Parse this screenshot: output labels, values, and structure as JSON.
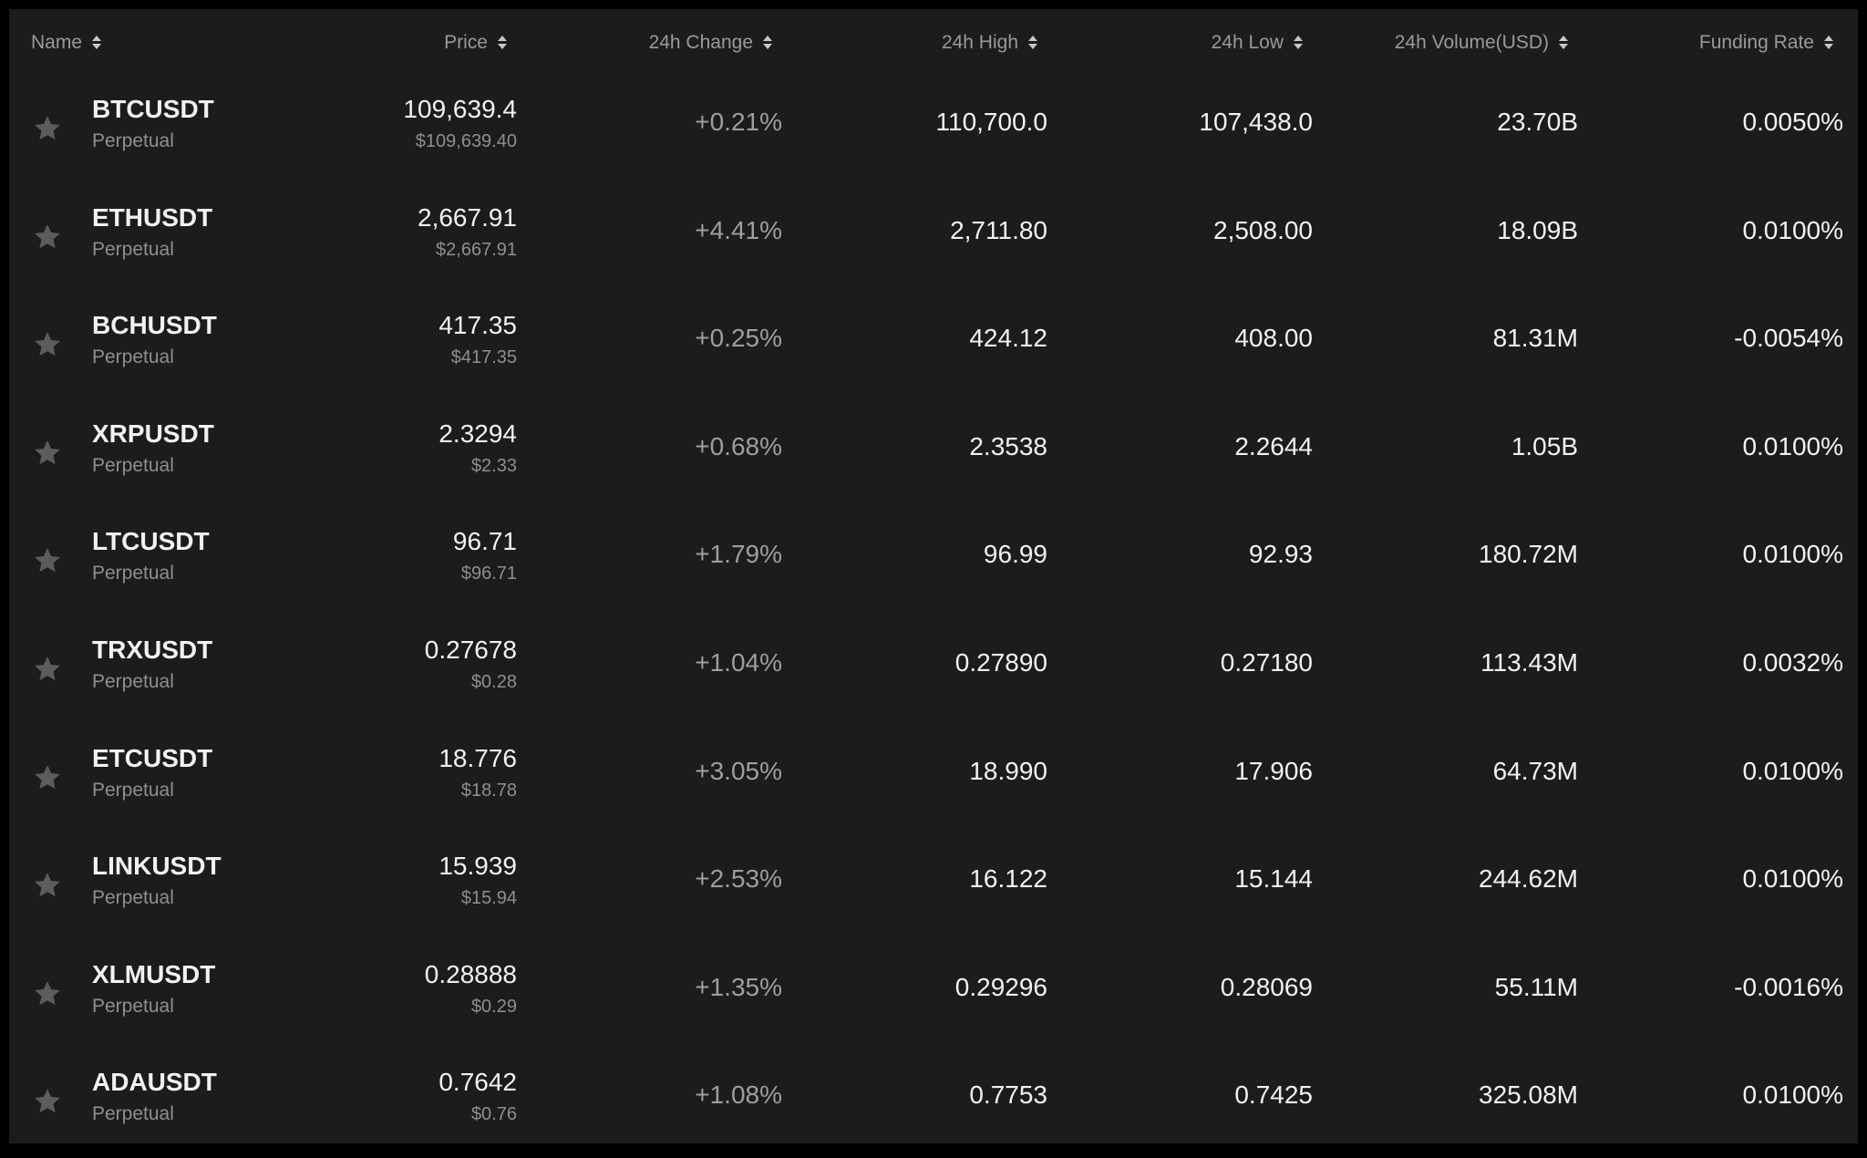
{
  "header": {
    "columns": [
      {
        "key": "name",
        "label": "Name"
      },
      {
        "key": "price",
        "label": "Price"
      },
      {
        "key": "change",
        "label": "24h Change"
      },
      {
        "key": "high",
        "label": "24h High"
      },
      {
        "key": "low",
        "label": "24h Low"
      },
      {
        "key": "volume",
        "label": "24h Volume(USD)"
      },
      {
        "key": "funding",
        "label": "Funding Rate"
      }
    ]
  },
  "rows": [
    {
      "symbol": "BTCUSDT",
      "type": "Perpetual",
      "price": "109,639.4",
      "price_usd": "$109,639.40",
      "change": "+0.21%",
      "high": "110,700.0",
      "low": "107,438.0",
      "volume": "23.70B",
      "funding": "0.0050%"
    },
    {
      "symbol": "ETHUSDT",
      "type": "Perpetual",
      "price": "2,667.91",
      "price_usd": "$2,667.91",
      "change": "+4.41%",
      "high": "2,711.80",
      "low": "2,508.00",
      "volume": "18.09B",
      "funding": "0.0100%"
    },
    {
      "symbol": "BCHUSDT",
      "type": "Perpetual",
      "price": "417.35",
      "price_usd": "$417.35",
      "change": "+0.25%",
      "high": "424.12",
      "low": "408.00",
      "volume": "81.31M",
      "funding": "-0.0054%"
    },
    {
      "symbol": "XRPUSDT",
      "type": "Perpetual",
      "price": "2.3294",
      "price_usd": "$2.33",
      "change": "+0.68%",
      "high": "2.3538",
      "low": "2.2644",
      "volume": "1.05B",
      "funding": "0.0100%"
    },
    {
      "symbol": "LTCUSDT",
      "type": "Perpetual",
      "price": "96.71",
      "price_usd": "$96.71",
      "change": "+1.79%",
      "high": "96.99",
      "low": "92.93",
      "volume": "180.72M",
      "funding": "0.0100%"
    },
    {
      "symbol": "TRXUSDT",
      "type": "Perpetual",
      "price": "0.27678",
      "price_usd": "$0.28",
      "change": "+1.04%",
      "high": "0.27890",
      "low": "0.27180",
      "volume": "113.43M",
      "funding": "0.0032%"
    },
    {
      "symbol": "ETCUSDT",
      "type": "Perpetual",
      "price": "18.776",
      "price_usd": "$18.78",
      "change": "+3.05%",
      "high": "18.990",
      "low": "17.906",
      "volume": "64.73M",
      "funding": "0.0100%"
    },
    {
      "symbol": "LINKUSDT",
      "type": "Perpetual",
      "price": "15.939",
      "price_usd": "$15.94",
      "change": "+2.53%",
      "high": "16.122",
      "low": "15.144",
      "volume": "244.62M",
      "funding": "0.0100%"
    },
    {
      "symbol": "XLMUSDT",
      "type": "Perpetual",
      "price": "0.28888",
      "price_usd": "$0.29",
      "change": "+1.35%",
      "high": "0.29296",
      "low": "0.28069",
      "volume": "55.11M",
      "funding": "-0.0016%"
    },
    {
      "symbol": "ADAUSDT",
      "type": "Perpetual",
      "price": "0.7642",
      "price_usd": "$0.76",
      "change": "+1.08%",
      "high": "0.7753",
      "low": "0.7425",
      "volume": "325.08M",
      "funding": "0.0100%"
    }
  ],
  "icons": {
    "favorite": "star-icon",
    "sort": "sort-arrows-icon"
  },
  "colors": {
    "background": "#1c1c1c",
    "text": "#f2f2f2",
    "muted": "#8f8f8f",
    "star": "#5c5c5c"
  }
}
